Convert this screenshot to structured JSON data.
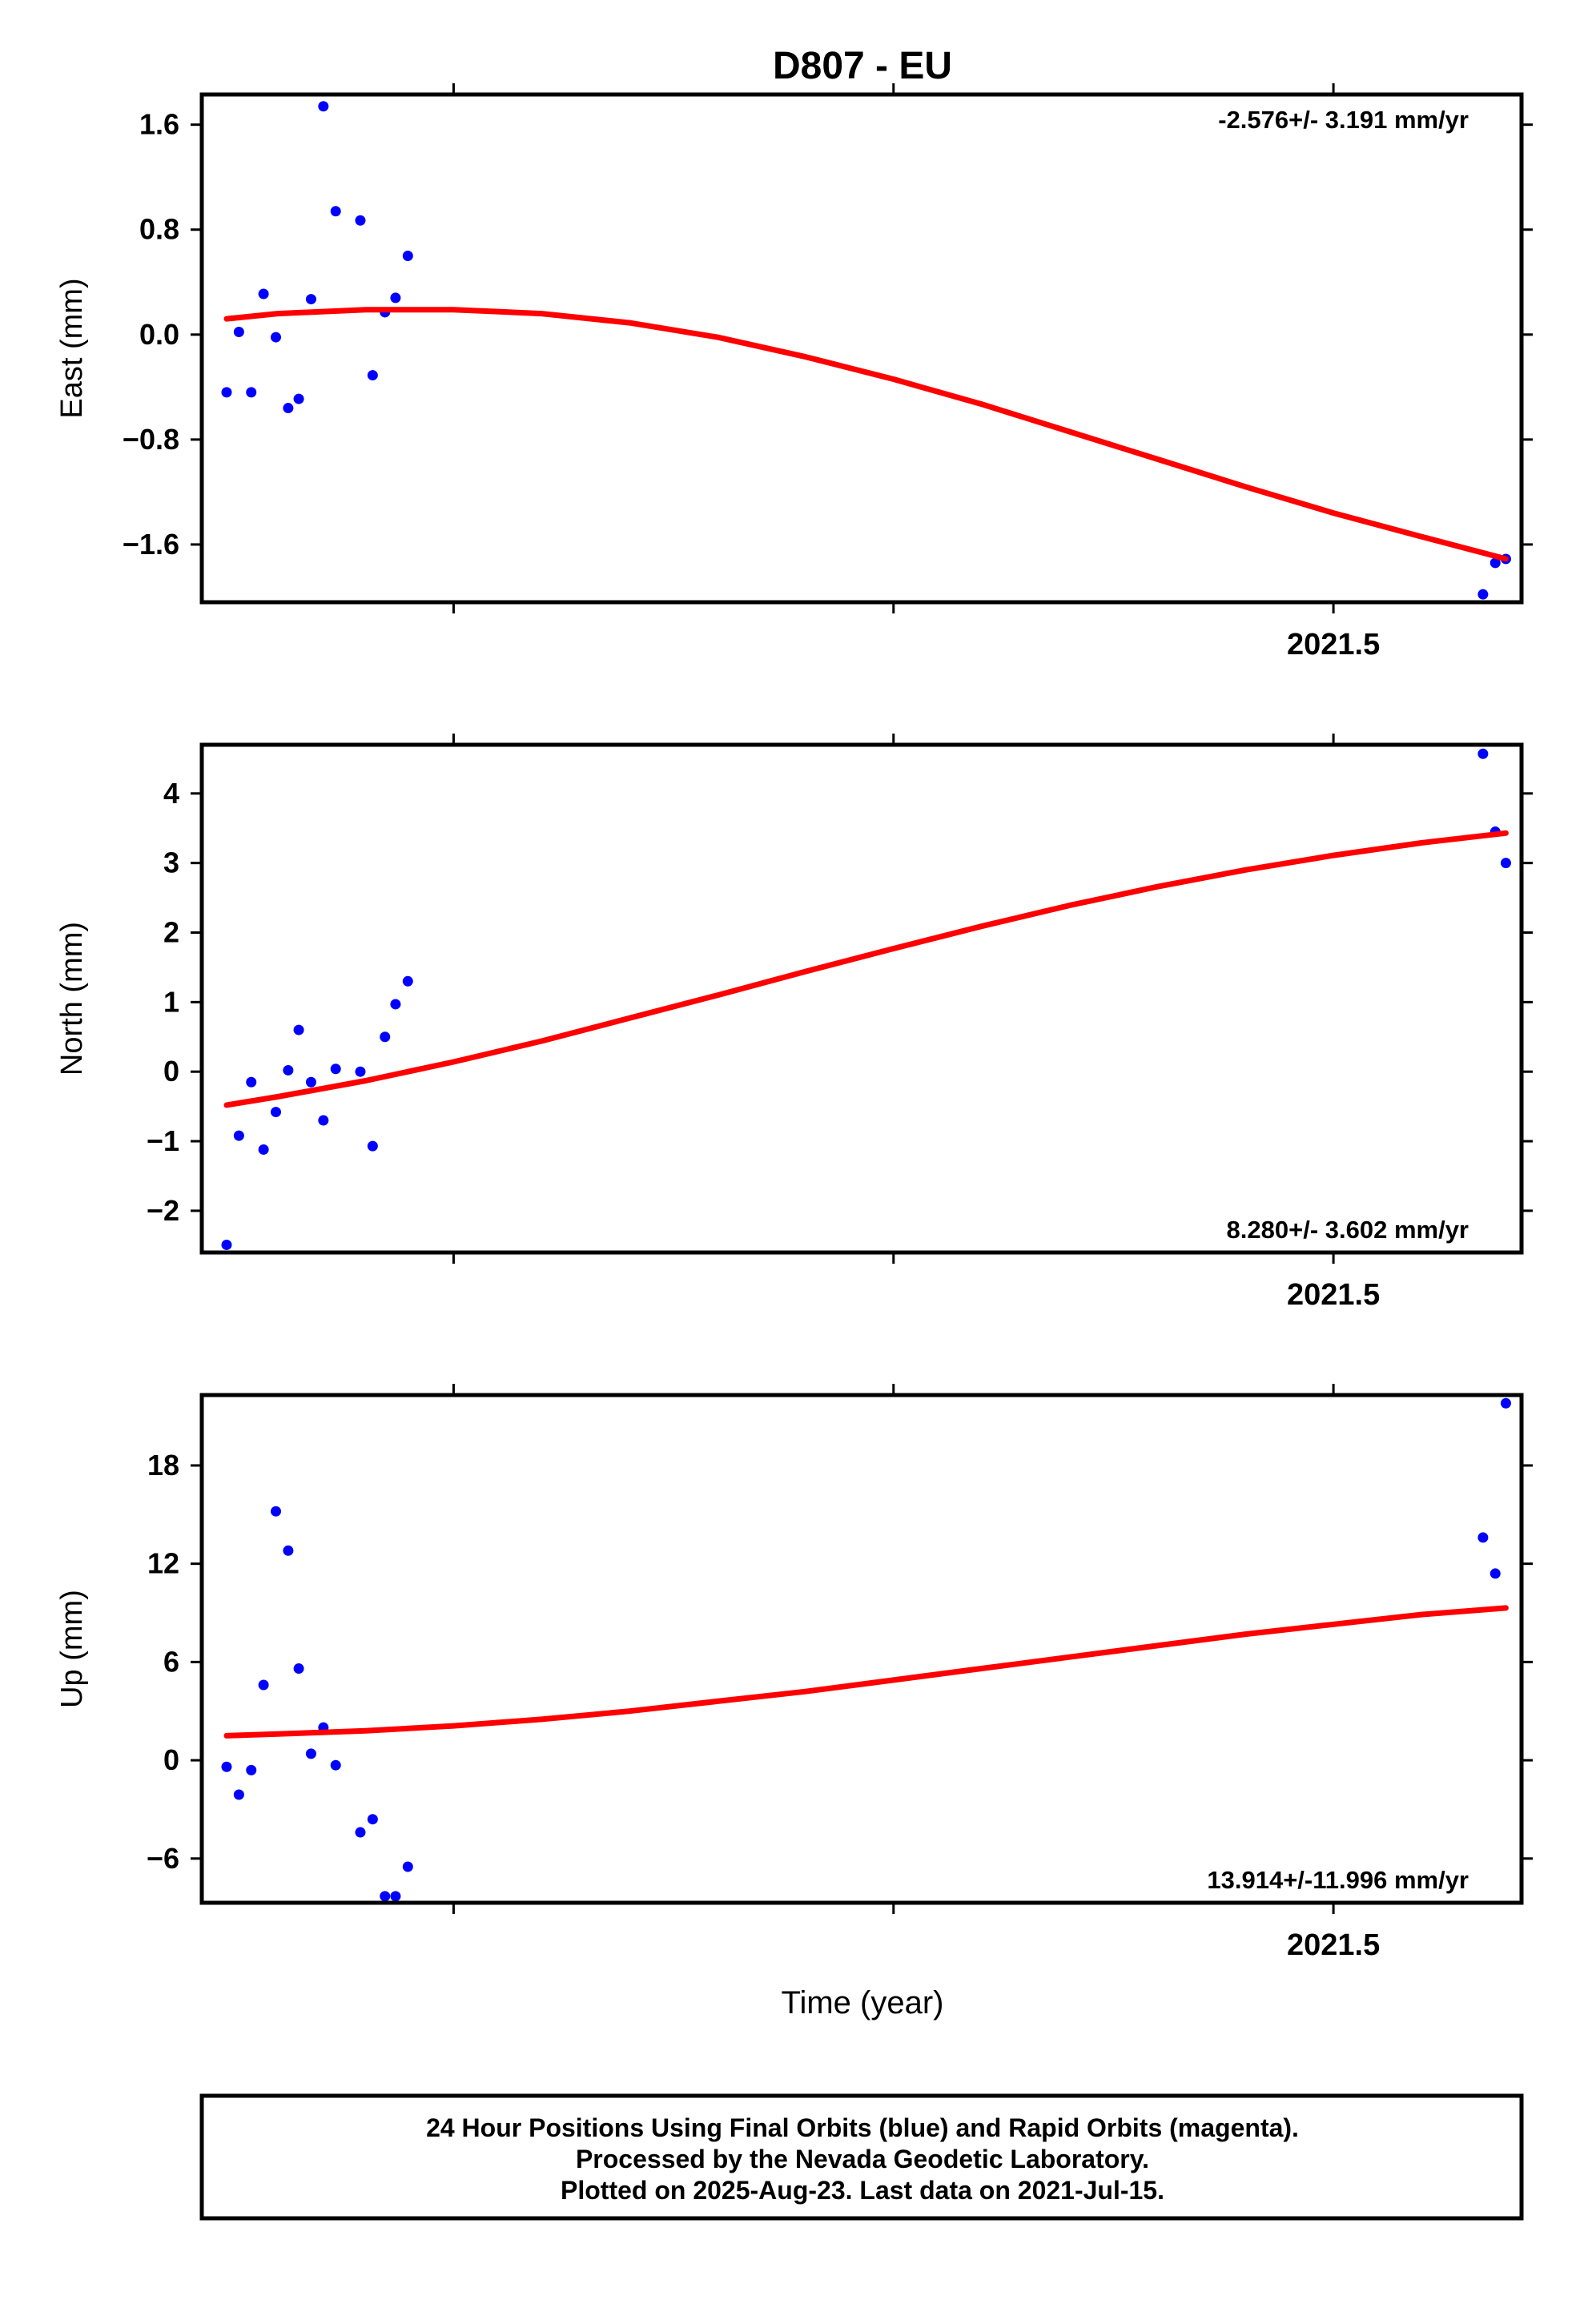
{
  "title": "D807 - EU",
  "xlabel": "Time (year)",
  "footer": {
    "line1": "24 Hour Positions Using Final Orbits (blue) and Rapid Orbits (magenta).",
    "line2": "Processed by the Nevada Geodetic Laboratory.",
    "line3": "Plotted on 2025-Aug-23. Last data on 2021-Jul-15."
  },
  "colors": {
    "points": "#0000ff",
    "fit": "#ff0000",
    "frame": "#000000"
  },
  "chart_data": [
    {
      "type": "scatter",
      "panel": "east",
      "ylabel": "East (mm)",
      "rate_text": "-2.576+/- 3.191 mm/yr",
      "rate_position": "top-right",
      "xlim": [
        2020.8569,
        2021.6069
      ],
      "ylim": [
        -2.04,
        1.83
      ],
      "yticks": [
        -1.6,
        -0.8,
        0.0,
        0.8,
        1.6
      ],
      "ytick_labels": [
        "−1.6",
        "−0.8",
        "0.0",
        "0.8",
        "1.6"
      ],
      "xticks": [
        2021.0,
        2021.25,
        2021.5
      ],
      "xtick_labels": [
        "",
        "",
        "2021.5"
      ],
      "points": [
        {
          "x": 2020.871,
          "y": -0.44
        },
        {
          "x": 2020.878,
          "y": 0.02
        },
        {
          "x": 2020.885,
          "y": -0.44
        },
        {
          "x": 2020.892,
          "y": 0.31
        },
        {
          "x": 2020.899,
          "y": -0.02
        },
        {
          "x": 2020.906,
          "y": -0.56
        },
        {
          "x": 2020.912,
          "y": -0.49
        },
        {
          "x": 2020.919,
          "y": 0.27
        },
        {
          "x": 2020.926,
          "y": 1.74
        },
        {
          "x": 2020.933,
          "y": 0.94
        },
        {
          "x": 2020.947,
          "y": 0.87
        },
        {
          "x": 2020.954,
          "y": -0.31
        },
        {
          "x": 2020.961,
          "y": 0.17
        },
        {
          "x": 2020.967,
          "y": 0.28
        },
        {
          "x": 2020.974,
          "y": 0.6
        },
        {
          "x": 2021.585,
          "y": -1.98
        },
        {
          "x": 2021.592,
          "y": -1.74
        },
        {
          "x": 2021.598,
          "y": -1.71
        }
      ],
      "fit": {
        "x": [
          2020.871,
          2020.9,
          2020.95,
          2021.0,
          2021.05,
          2021.1,
          2021.15,
          2021.2,
          2021.25,
          2021.3,
          2021.35,
          2021.4,
          2021.45,
          2021.5,
          2021.55,
          2021.598
        ],
        "y": [
          0.12,
          0.16,
          0.19,
          0.19,
          0.16,
          0.09,
          -0.02,
          -0.17,
          -0.34,
          -0.53,
          -0.74,
          -0.95,
          -1.16,
          -1.36,
          -1.54,
          -1.71
        ]
      }
    },
    {
      "type": "scatter",
      "panel": "north",
      "ylabel": "North (mm)",
      "rate_text": "8.280+/- 3.602 mm/yr",
      "rate_position": "bottom-right",
      "xlim": [
        2020.8569,
        2021.6069
      ],
      "ylim": [
        -2.6,
        4.7
      ],
      "yticks": [
        -2,
        -1,
        0,
        1,
        2,
        3,
        4
      ],
      "ytick_labels": [
        "−2",
        "−1",
        "0",
        "1",
        "2",
        "3",
        "4"
      ],
      "xticks": [
        2021.0,
        2021.25,
        2021.5
      ],
      "xtick_labels": [
        "",
        "",
        "2021.5"
      ],
      "points": [
        {
          "x": 2020.871,
          "y": -2.49
        },
        {
          "x": 2020.878,
          "y": -0.92
        },
        {
          "x": 2020.885,
          "y": -0.15
        },
        {
          "x": 2020.892,
          "y": -1.12
        },
        {
          "x": 2020.899,
          "y": -0.58
        },
        {
          "x": 2020.906,
          "y": 0.02
        },
        {
          "x": 2020.912,
          "y": 0.6
        },
        {
          "x": 2020.919,
          "y": -0.15
        },
        {
          "x": 2020.926,
          "y": -0.7
        },
        {
          "x": 2020.933,
          "y": 0.04
        },
        {
          "x": 2020.947,
          "y": 0.0
        },
        {
          "x": 2020.954,
          "y": -1.07
        },
        {
          "x": 2020.961,
          "y": 0.5
        },
        {
          "x": 2020.967,
          "y": 0.97
        },
        {
          "x": 2020.974,
          "y": 1.3
        },
        {
          "x": 2021.585,
          "y": 4.57
        },
        {
          "x": 2021.592,
          "y": 3.45
        },
        {
          "x": 2021.598,
          "y": 3.0
        }
      ],
      "fit": {
        "x": [
          2020.871,
          2020.9,
          2020.95,
          2021.0,
          2021.05,
          2021.1,
          2021.15,
          2021.2,
          2021.25,
          2021.3,
          2021.35,
          2021.4,
          2021.45,
          2021.5,
          2021.55,
          2021.598
        ],
        "y": [
          -0.48,
          -0.36,
          -0.13,
          0.14,
          0.44,
          0.77,
          1.1,
          1.44,
          1.77,
          2.09,
          2.39,
          2.66,
          2.9,
          3.11,
          3.29,
          3.43
        ]
      }
    },
    {
      "type": "scatter",
      "panel": "up",
      "ylabel": "Up (mm)",
      "rate_text": "13.914+/-11.996 mm/yr",
      "rate_position": "bottom-right",
      "xlim": [
        2020.8569,
        2021.6069
      ],
      "ylim": [
        -8.7,
        22.3
      ],
      "yticks": [
        -6,
        0,
        6,
        12,
        18
      ],
      "ytick_labels": [
        "−6",
        "0",
        "6",
        "12",
        "18"
      ],
      "xticks": [
        2021.0,
        2021.25,
        2021.5
      ],
      "xtick_labels": [
        "",
        "",
        "2021.5"
      ],
      "points": [
        {
          "x": 2020.871,
          "y": -0.4
        },
        {
          "x": 2020.878,
          "y": -2.1
        },
        {
          "x": 2020.885,
          "y": -0.6
        },
        {
          "x": 2020.892,
          "y": 4.6
        },
        {
          "x": 2020.899,
          "y": 15.2
        },
        {
          "x": 2020.906,
          "y": 12.8
        },
        {
          "x": 2020.912,
          "y": 5.6
        },
        {
          "x": 2020.919,
          "y": 0.4
        },
        {
          "x": 2020.926,
          "y": 2.0
        },
        {
          "x": 2020.933,
          "y": -0.3
        },
        {
          "x": 2020.947,
          "y": -4.4
        },
        {
          "x": 2020.954,
          "y": -3.6
        },
        {
          "x": 2020.961,
          "y": -8.3
        },
        {
          "x": 2020.967,
          "y": -8.3
        },
        {
          "x": 2020.974,
          "y": -6.5
        },
        {
          "x": 2021.585,
          "y": 13.6
        },
        {
          "x": 2021.592,
          "y": 11.4
        },
        {
          "x": 2021.598,
          "y": 21.8
        }
      ],
      "fit": {
        "x": [
          2020.871,
          2020.9,
          2020.95,
          2021.0,
          2021.05,
          2021.1,
          2021.15,
          2021.2,
          2021.25,
          2021.3,
          2021.35,
          2021.4,
          2021.45,
          2021.5,
          2021.55,
          2021.598
        ],
        "y": [
          1.5,
          1.6,
          1.8,
          2.1,
          2.5,
          3.0,
          3.6,
          4.2,
          4.9,
          5.6,
          6.3,
          7.0,
          7.7,
          8.3,
          8.9,
          9.3
        ]
      }
    }
  ]
}
